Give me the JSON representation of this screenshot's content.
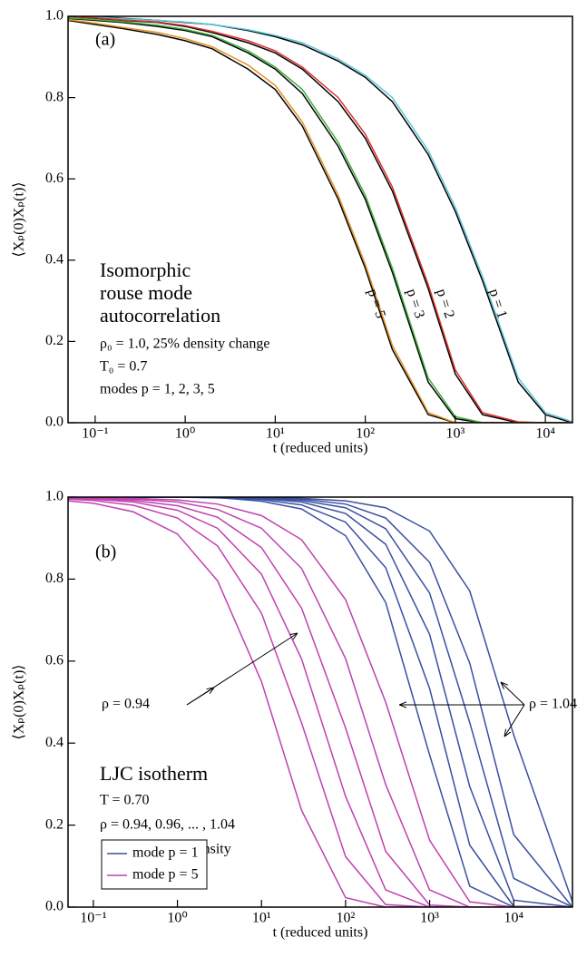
{
  "chart_data": [
    {
      "type": "line",
      "xscale": "log",
      "xlabel": "t  (reduced units)",
      "ylabel": "⟨Xₚ(0)Xₚ(t)⟩",
      "x": [
        0.05,
        0.1,
        0.2,
        0.5,
        1,
        2,
        5,
        10,
        20,
        50,
        100,
        200,
        500,
        1000,
        2000,
        5000,
        10000,
        20000
      ],
      "xlim": [
        0.05,
        20000
      ],
      "xticks": [
        {
          "value": 0.1,
          "label": "10⁻¹"
        },
        {
          "value": 1,
          "label": "10⁰"
        },
        {
          "value": 10,
          "label": "10¹"
        },
        {
          "value": 100,
          "label": "10²"
        },
        {
          "value": 1000,
          "label": "10³"
        },
        {
          "value": 10000,
          "label": "10⁴"
        }
      ],
      "ylim": [
        0,
        1
      ],
      "yticks": [
        {
          "value": 0,
          "label": "0.0"
        },
        0.2,
        0.4,
        0.6,
        0.8,
        {
          "value": 1,
          "label": "1.0"
        }
      ],
      "annotations": [
        "(a)",
        "Isomorphic",
        "rouse mode",
        "autocorrelation",
        "ρ₀ = 1.0,  25% density change",
        "T₀ = 0.7",
        "modes p = 1, 2, 3, 5",
        "p = 1",
        "p = 2",
        "p = 3",
        "p = 5"
      ],
      "series": [
        {
          "color": "#000000",
          "values": [
            1,
            1,
            0.995,
            0.99,
            0.985,
            0.98,
            0.965,
            0.95,
            0.93,
            0.89,
            0.85,
            0.79,
            0.66,
            0.52,
            0.35,
            0.1,
            0.02,
            0
          ]
        },
        {
          "color": "#5bc8d8",
          "values": [
            1,
            0.998,
            0.994,
            0.99,
            0.986,
            0.98,
            0.967,
            0.953,
            0.935,
            0.895,
            0.855,
            0.8,
            0.67,
            0.53,
            0.36,
            0.11,
            0.025,
            0.002
          ]
        },
        {
          "color": "#000000",
          "values": [
            1,
            0.995,
            0.99,
            0.985,
            0.975,
            0.96,
            0.935,
            0.91,
            0.87,
            0.79,
            0.7,
            0.57,
            0.33,
            0.12,
            0.02,
            0,
            0,
            0
          ]
        },
        {
          "color": "#e03030",
          "values": [
            1,
            0.996,
            0.991,
            0.986,
            0.977,
            0.963,
            0.94,
            0.915,
            0.875,
            0.8,
            0.71,
            0.58,
            0.34,
            0.13,
            0.025,
            0.002,
            0,
            0
          ]
        },
        {
          "color": "#000000",
          "values": [
            0.995,
            0.99,
            0.985,
            0.975,
            0.965,
            0.95,
            0.91,
            0.87,
            0.81,
            0.68,
            0.55,
            0.37,
            0.1,
            0.01,
            0,
            0,
            0,
            0
          ]
        },
        {
          "color": "#40b040",
          "values": [
            0.996,
            0.992,
            0.987,
            0.978,
            0.968,
            0.953,
            0.915,
            0.875,
            0.82,
            0.69,
            0.56,
            0.38,
            0.11,
            0.015,
            0,
            0,
            0,
            0
          ]
        },
        {
          "color": "#000000",
          "values": [
            0.99,
            0.98,
            0.97,
            0.955,
            0.94,
            0.92,
            0.87,
            0.82,
            0.73,
            0.55,
            0.38,
            0.18,
            0.02,
            0,
            0,
            0,
            0,
            0
          ]
        },
        {
          "color": "#e89020",
          "values": [
            0.992,
            0.983,
            0.973,
            0.96,
            0.945,
            0.925,
            0.88,
            0.83,
            0.74,
            0.56,
            0.39,
            0.19,
            0.025,
            0,
            0,
            0,
            0,
            0
          ]
        }
      ]
    },
    {
      "type": "line",
      "xscale": "log",
      "legend": "lower left",
      "xlabel": "t  (reduced units)",
      "ylabel": "⟨Xₚ(0)Xₚ(t)⟩",
      "x": [
        0.05,
        0.1,
        0.3,
        1,
        3,
        10,
        30,
        100,
        300,
        1000,
        3000,
        10000,
        50000
      ],
      "xlim": [
        0.05,
        50000
      ],
      "xticks": [
        {
          "value": 0.1,
          "label": "10⁻¹"
        },
        {
          "value": 1,
          "label": "10⁰"
        },
        {
          "value": 10,
          "label": "10¹"
        },
        {
          "value": 100,
          "label": "10²"
        },
        {
          "value": 1000,
          "label": "10³"
        },
        {
          "value": 10000,
          "label": "10⁴"
        }
      ],
      "ylim": [
        0,
        1
      ],
      "yticks": [
        {
          "value": 0,
          "label": "0.0"
        },
        0.2,
        0.4,
        0.6,
        0.8,
        {
          "value": 1,
          "label": "1.0"
        }
      ],
      "annotations": [
        "(b)",
        "ρ = 0.94",
        "ρ = 1.04",
        "LJC isotherm",
        "T = 0.70",
        "ρ = 0.94, 0.96, ... , 1.04",
        "11% change in density"
      ],
      "series": [
        {
          "name": "mode p = 1",
          "color": "#3a4fa0",
          "values": [
            1,
            1,
            1,
            1,
            0.999,
            0.99,
            0.971,
            0.906,
            0.743,
            0.371,
            0.051,
            0,
            0
          ]
        },
        {
          "color": "#3a4fa0",
          "values": [
            1,
            1,
            1,
            1,
            0.998,
            0.994,
            0.981,
            0.939,
            0.828,
            0.533,
            0.151,
            0.002,
            0
          ]
        },
        {
          "color": "#3a4fa0",
          "values": [
            1,
            1,
            1,
            1,
            0.999,
            0.996,
            0.988,
            0.96,
            0.885,
            0.665,
            0.294,
            0.017,
            0
          ]
        },
        {
          "color": "#3a4fa0",
          "values": [
            1,
            1,
            1,
            1,
            0.999,
            0.997,
            0.992,
            0.974,
            0.923,
            0.766,
            0.45,
            0.07,
            0
          ]
        },
        {
          "color": "#3a4fa0",
          "values": [
            1,
            1,
            1,
            1,
            1,
            0.998,
            0.995,
            0.983,
            0.949,
            0.841,
            0.595,
            0.177,
            0
          ]
        },
        {
          "color": "#3a4fa0",
          "values": [
            1,
            1,
            1,
            1,
            1,
            0.999,
            0.997,
            0.991,
            0.974,
            0.917,
            0.771,
            0.42,
            0.013
          ]
        },
        {
          "name": "mode p = 5",
          "color": "#c040b0",
          "values": [
            0.991,
            0.985,
            0.964,
            0.91,
            0.796,
            0.55,
            0.236,
            0.023,
            0,
            0,
            0,
            0,
            0
          ]
        },
        {
          "color": "#c040b0",
          "values": [
            0.995,
            0.992,
            0.98,
            0.949,
            0.881,
            0.717,
            0.449,
            0.123,
            0.006,
            0,
            0,
            0,
            0
          ]
        },
        {
          "color": "#c040b0",
          "values": [
            0.997,
            0.995,
            0.988,
            0.968,
            0.924,
            0.812,
            0.605,
            0.27,
            0.042,
            0,
            0,
            0,
            0
          ]
        },
        {
          "color": "#c040b0",
          "values": [
            0.998,
            0.997,
            0.992,
            0.979,
            0.951,
            0.877,
            0.729,
            0.437,
            0.136,
            0.005,
            0,
            0,
            0
          ]
        },
        {
          "color": "#c040b0",
          "values": [
            0.999,
            0.998,
            0.995,
            0.988,
            0.97,
            0.924,
            0.826,
            0.606,
            0.299,
            0.042,
            0,
            0,
            0
          ]
        },
        {
          "color": "#c040b0",
          "values": [
            0.999,
            0.999,
            0.997,
            0.993,
            0.983,
            0.955,
            0.896,
            0.75,
            0.5,
            0.163,
            0.013,
            0,
            0
          ]
        }
      ]
    }
  ]
}
